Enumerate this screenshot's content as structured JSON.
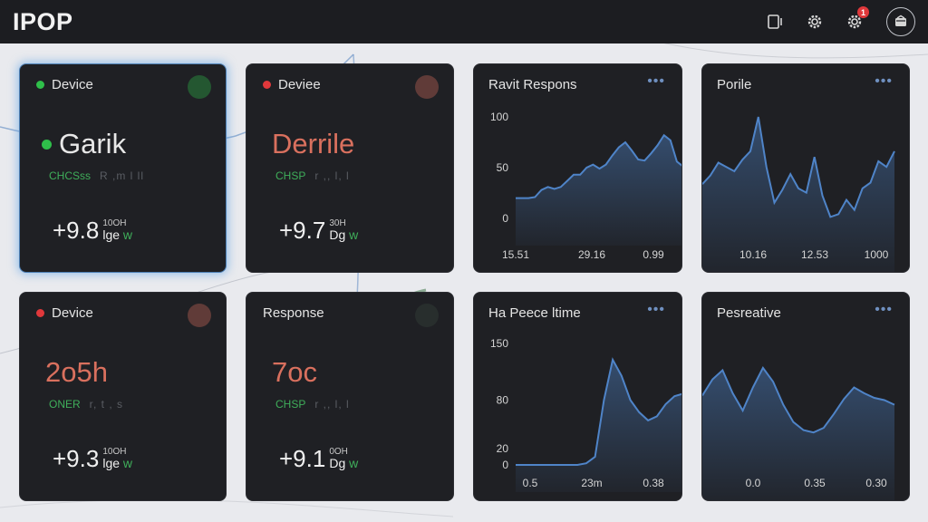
{
  "app": {
    "title": "IPOP"
  },
  "header": {
    "icons": [
      "tablet-icon",
      "settings-icon",
      "settings-notification-icon",
      "user-avatar-icon"
    ],
    "notification_count": "1"
  },
  "devices": [
    {
      "title": "Device",
      "status_color": "#2fbf4a",
      "value_dot_color": "#2fbf4a",
      "value": "Garik",
      "value_color": "#e8e8e8",
      "status_code": "CHCSss",
      "status_trail": "R ,m l ll",
      "footer_value": "+9.8",
      "footer_sub": "10OH",
      "footer_unit": "lge",
      "footer_unit_suffix": "w"
    },
    {
      "title": "Deviee",
      "status_color": "#e0383b",
      "value_dot_color": "",
      "value": "Derrile",
      "value_color": "#d9705e",
      "status_code": "CHSP",
      "status_trail": "r ,, l,  l",
      "footer_value": "+9.7",
      "footer_sub": "30H",
      "footer_unit": "Dg",
      "footer_unit_suffix": "w"
    },
    {
      "title": "Device",
      "status_color": "#e0383b",
      "value_dot_color": "",
      "value": "2o5h",
      "value_color": "#d9705e",
      "status_code": "ONER",
      "status_trail": "r,  t , s",
      "footer_value": "+9.3",
      "footer_sub": "10OH",
      "footer_unit": "lge",
      "footer_unit_suffix": "w"
    },
    {
      "title": "Response",
      "status_color": "",
      "value_dot_color": "",
      "value": "7oc",
      "value_color": "#d9705e",
      "status_code": "CHSP",
      "status_trail": "r ,, l,  l",
      "footer_value": "+9.1",
      "footer_sub": "0OH",
      "footer_unit": "Dg",
      "footer_unit_suffix": "w"
    }
  ],
  "charts": [
    {
      "title": "Ravit Respons",
      "menu": "•••",
      "y_ticks": [
        "100",
        "50",
        "0"
      ],
      "x_ticks": [
        "15.51",
        "29.16",
        "0.99"
      ]
    },
    {
      "title": "Porile",
      "menu": "•••",
      "y_ticks": [],
      "x_ticks": [
        "10.16",
        "12.53",
        "1000"
      ]
    },
    {
      "title": "Ha Peece ltime",
      "menu": "•••",
      "y_ticks": [
        "150",
        "80",
        "20",
        "0"
      ],
      "x_ticks": [
        "0.5",
        "23m",
        "0.38"
      ]
    },
    {
      "title": "Pesreative",
      "menu": "•••",
      "y_ticks": [],
      "x_ticks": [
        "0.0",
        "0.35",
        "0.30"
      ]
    }
  ],
  "chart_data": [
    {
      "type": "area",
      "title": "Ravit Respons",
      "x_tick_labels": [
        "15.51",
        "29.16",
        "0.99"
      ],
      "ylim": [
        0,
        100
      ],
      "y_ticks": [
        100,
        50,
        0
      ],
      "grid": false,
      "color": "#4f84c8",
      "series": [
        {
          "values": [
            20,
            20,
            20,
            21,
            28,
            31,
            29,
            31,
            37,
            43,
            43,
            50,
            53,
            49,
            53,
            62,
            70,
            75,
            67,
            58,
            57,
            64,
            72,
            82,
            77,
            56,
            51
          ]
        }
      ]
    },
    {
      "type": "area",
      "title": "Porile",
      "x_tick_labels": [
        "10.16",
        "12.53",
        "1000"
      ],
      "grid": false,
      "color": "#4f84c8",
      "series": [
        {
          "values": [
            73,
            79,
            88,
            85,
            82,
            90,
            96,
            120,
            85,
            60,
            69,
            80,
            70,
            67,
            92,
            65,
            50,
            52,
            62,
            55,
            70,
            74,
            89,
            85,
            96
          ]
        }
      ]
    },
    {
      "type": "area",
      "title": "Ha Peece ltime",
      "x_tick_labels": [
        "0.5",
        "23m",
        "0.38"
      ],
      "ylim": [
        0,
        150
      ],
      "y_ticks": [
        150,
        80,
        20,
        0
      ],
      "grid": false,
      "color": "#4f84c8",
      "series": [
        {
          "values": [
            0,
            0,
            0,
            0,
            0,
            0,
            0,
            0,
            2,
            10,
            80,
            130,
            110,
            80,
            65,
            55,
            60,
            75,
            85,
            88
          ]
        }
      ]
    },
    {
      "type": "area",
      "title": "Pesreative",
      "x_tick_labels": [
        "0.0",
        "0.35",
        "0.30"
      ],
      "grid": false,
      "color": "#4f84c8",
      "series": [
        {
          "values": [
            68,
            82,
            90,
            70,
            55,
            75,
            92,
            80,
            60,
            45,
            38,
            36,
            40,
            52,
            65,
            75,
            70,
            66,
            64,
            60
          ]
        }
      ]
    }
  ]
}
